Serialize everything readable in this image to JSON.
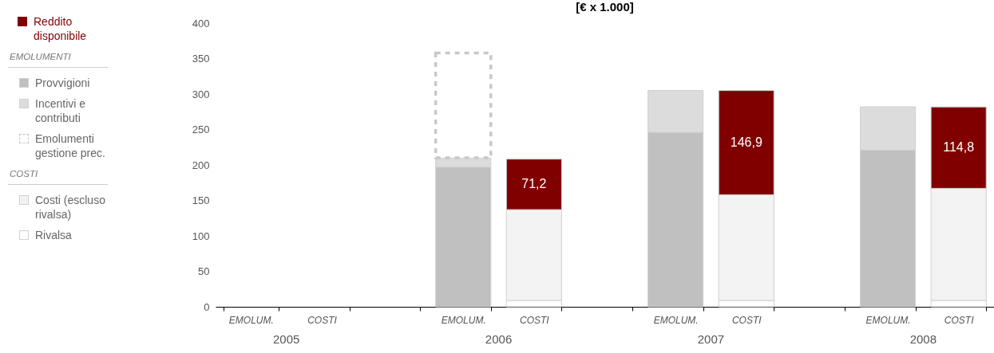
{
  "chart_data": {
    "type": "bar",
    "title": "[€ x 1.000]",
    "stacked": true,
    "categories": [
      "EMOLUM.",
      "COSTI",
      null,
      "EMOLUM.",
      "COSTI",
      null,
      "EMOLUM.",
      "COSTI",
      null,
      "EMOLUM.",
      "COSTI"
    ],
    "series": [
      {
        "name": "Provvigioni",
        "color": "#c0c0c0",
        "values": [
          null,
          null,
          null,
          197,
          null,
          null,
          246,
          null,
          null,
          221,
          null
        ]
      },
      {
        "name": "Incentivi e contributi",
        "color": "#dcdcdc",
        "values": [
          null,
          null,
          null,
          13,
          null,
          null,
          59,
          null,
          null,
          61,
          null
        ]
      },
      {
        "name": "Emolumenti gestione prec.",
        "color": "#c8c8c8",
        "line_style": "dashed",
        "values": [
          null,
          null,
          null,
          148,
          null,
          null,
          null,
          null,
          null,
          null,
          null
        ]
      },
      {
        "name": "Rivalsa",
        "color": "#ffffff",
        "values": [
          null,
          null,
          null,
          null,
          9,
          null,
          null,
          9,
          null,
          null,
          9
        ]
      },
      {
        "name": "Costi (escluso rivalsa)",
        "color": "#f3f3f3",
        "values": [
          null,
          null,
          null,
          null,
          128,
          null,
          null,
          149,
          null,
          null,
          158
        ]
      },
      {
        "name": "Reddito disponibile",
        "color": "#800000",
        "values": [
          null,
          null,
          null,
          null,
          71.2,
          null,
          null,
          146.9,
          null,
          null,
          114.8
        ],
        "value_labels": [
          null,
          null,
          null,
          null,
          "71,2",
          null,
          null,
          "146,9",
          null,
          null,
          "114,8"
        ]
      }
    ],
    "ylim": [
      0,
      400
    ],
    "yticks": [
      0,
      50,
      100,
      150,
      200,
      250,
      300,
      350,
      400
    ],
    "legend": "left",
    "annotations": [
      "2005",
      "2006",
      "2007",
      "2008",
      "EMOLUMENTI",
      "COSTI"
    ]
  }
}
